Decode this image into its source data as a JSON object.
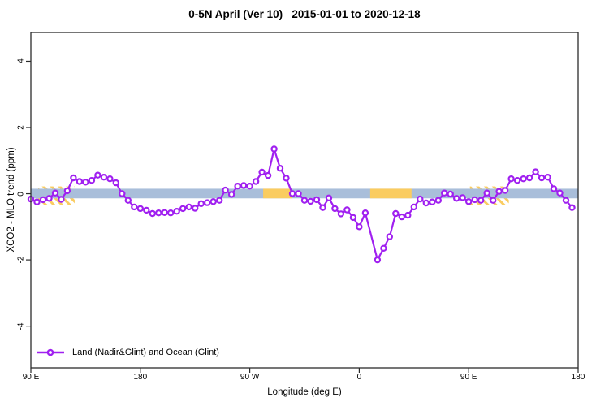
{
  "chart_data": {
    "type": "line",
    "title": "0-5N April (Ver 10)   2015-01-01 to 2020-12-18",
    "xlabel": "Longitude (deg E)",
    "ylabel": "XCO2 - MLO trend (ppm)",
    "xlim": [
      90,
      540
    ],
    "ylim": [
      -5.26,
      4.87
    ],
    "grid": "off",
    "x_ticks": [
      {
        "pos": 90,
        "label": "90 E"
      },
      {
        "pos": 180,
        "label": "180"
      },
      {
        "pos": 270,
        "label": "90 W"
      },
      {
        "pos": 360,
        "label": "0"
      },
      {
        "pos": 450,
        "label": "90 E"
      },
      {
        "pos": 540,
        "label": "180"
      }
    ],
    "y_ticks": [
      {
        "pos": -4,
        "label": "-4"
      },
      {
        "pos": -2,
        "label": "-2"
      },
      {
        "pos": 0,
        "label": "0"
      },
      {
        "pos": 2,
        "label": "2"
      },
      {
        "pos": 4,
        "label": "4"
      }
    ],
    "legend": {
      "position": "bottom-left",
      "label": "Land (Nadir&Glint) and Ocean (Glint)"
    },
    "bands": {
      "zero_band_color": "#A9BEDA",
      "zero_band_y_from": -0.14,
      "zero_band_y_to": 0.15,
      "highlight_color": "#FACC60",
      "solid_highlight_segments": [
        {
          "from": 281,
          "to": 305
        },
        {
          "from": 369,
          "to": 403
        }
      ],
      "hatched_highlight_segments": [
        {
          "from": 96,
          "to": 126
        },
        {
          "from": 451,
          "to": 483
        }
      ],
      "hatch_y_from": -0.34,
      "hatch_y_to": 0.22
    },
    "series": [
      {
        "name": "Land (Nadir&Glint) and Ocean (Glint)",
        "color": "#A020F0",
        "marker": "open-circle",
        "x": [
          90,
          95,
          100,
          105,
          110,
          115,
          120,
          125,
          130,
          135,
          140,
          145,
          150,
          155,
          160,
          165,
          170,
          175,
          180,
          185,
          190,
          195,
          200,
          205,
          210,
          215,
          220,
          225,
          230,
          235,
          240,
          245,
          250,
          255,
          260,
          265,
          270,
          275,
          280,
          285,
          290,
          295,
          300,
          305,
          310,
          315,
          320,
          325,
          330,
          335,
          340,
          345,
          350,
          355,
          360,
          365,
          375,
          380,
          385,
          390,
          395,
          400,
          405,
          410,
          415,
          420,
          425,
          430,
          435,
          440,
          445,
          450,
          455,
          460,
          465,
          470,
          475,
          480,
          485,
          490,
          495,
          500,
          505,
          510,
          515,
          520,
          525,
          530,
          535
        ],
        "y": [
          -0.16,
          -0.25,
          -0.18,
          -0.14,
          0.02,
          -0.17,
          0.09,
          0.48,
          0.37,
          0.35,
          0.4,
          0.56,
          0.5,
          0.45,
          0.33,
          0.0,
          -0.2,
          -0.4,
          -0.45,
          -0.5,
          -0.6,
          -0.58,
          -0.57,
          -0.58,
          -0.53,
          -0.45,
          -0.4,
          -0.44,
          -0.3,
          -0.27,
          -0.24,
          -0.2,
          0.11,
          -0.02,
          0.23,
          0.25,
          0.23,
          0.37,
          0.65,
          0.55,
          1.35,
          0.77,
          0.47,
          0.0,
          0.0,
          -0.2,
          -0.23,
          -0.18,
          -0.42,
          -0.13,
          -0.45,
          -0.61,
          -0.49,
          -0.72,
          -1.0,
          -0.58,
          -2.0,
          -1.65,
          -1.3,
          -0.6,
          -0.7,
          -0.65,
          -0.4,
          -0.16,
          -0.28,
          -0.25,
          -0.2,
          0.02,
          -0.01,
          -0.14,
          -0.12,
          -0.24,
          -0.18,
          -0.2,
          0.02,
          -0.2,
          0.07,
          0.1,
          0.45,
          0.4,
          0.45,
          0.48,
          0.66,
          0.48,
          0.5,
          0.15,
          0.02,
          -0.2,
          -0.42
        ]
      }
    ],
    "frame_color": "#2b2b2b"
  }
}
